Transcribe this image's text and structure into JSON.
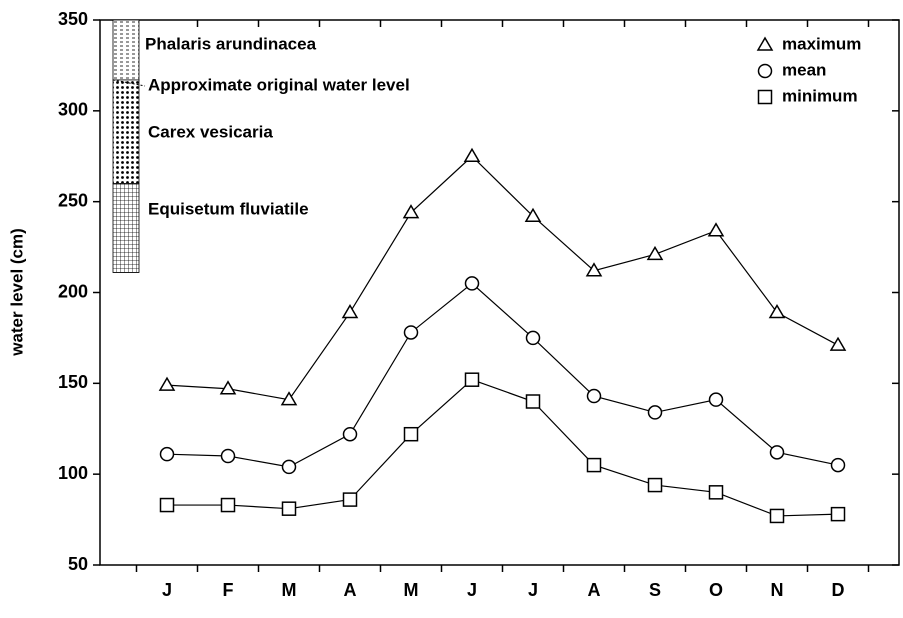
{
  "chart_data": {
    "type": "line",
    "y_label": "water level (cm)",
    "categories": [
      "J",
      "F",
      "M",
      "A",
      "M",
      "J",
      "J",
      "A",
      "S",
      "O",
      "N",
      "D"
    ],
    "series": [
      {
        "name": "maximum",
        "marker": "triangle",
        "color": "#000000",
        "values": [
          149,
          147,
          141,
          189,
          244,
          275,
          242,
          212,
          221,
          234,
          189,
          171
        ]
      },
      {
        "name": "mean",
        "marker": "circle",
        "color": "#000000",
        "values": [
          111,
          110,
          104,
          122,
          178,
          205,
          175,
          143,
          134,
          141,
          112,
          105
        ]
      },
      {
        "name": "minimum",
        "marker": "square",
        "color": "#000000",
        "values": [
          83,
          83,
          81,
          86,
          122,
          152,
          140,
          105,
          94,
          90,
          77,
          78
        ]
      }
    ],
    "ylim": [
      50,
      350
    ],
    "yticks": [
      50,
      100,
      150,
      200,
      250,
      300,
      350
    ],
    "zones": [
      {
        "label": "Phalaris arundinacea",
        "pattern": "dashes",
        "from": 317,
        "to": 350
      },
      {
        "label": "Carex vesicaria",
        "pattern": "dots",
        "from": 260,
        "to": 317
      },
      {
        "label": "Equisetum fluviatile",
        "pattern": "grid",
        "from": 211,
        "to": 260
      }
    ],
    "reference_level": {
      "label": "Approximate original water level",
      "value": 317
    },
    "legend_position": "upper right"
  }
}
